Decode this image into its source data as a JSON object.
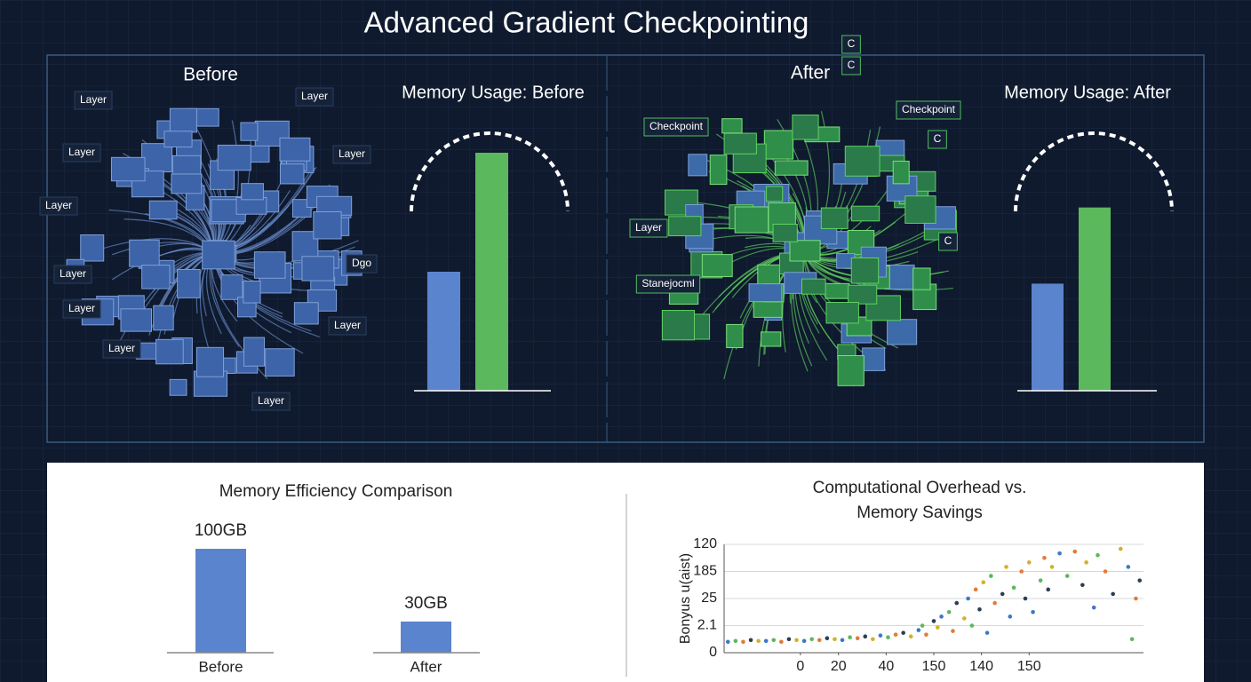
{
  "header": {
    "title": "Advanced Gradient Checkpointing"
  },
  "panels": {
    "before": "Before",
    "after": "After"
  },
  "network": {
    "before_labels": [
      "Layer",
      "Layer",
      "Layer",
      "Layer",
      "Layer",
      "Layer",
      "Layer",
      "Layer",
      "Layer",
      "Layer",
      "Dgo"
    ],
    "after_labels": [
      "Checkpoint",
      "Checkpoint",
      "Layer",
      "C",
      "C",
      "C",
      "C",
      "Stanejocml"
    ]
  },
  "chart_data": [
    {
      "type": "bar",
      "title": "Memory Usage: Before",
      "values": [
        50,
        100
      ],
      "colors": [
        "#5b84cf",
        "#5cb85c"
      ],
      "ylim": [
        0,
        100
      ]
    },
    {
      "type": "bar",
      "title": "Memory Usage: After",
      "values": [
        45,
        77
      ],
      "colors": [
        "#5b84cf",
        "#5cb85c"
      ],
      "ylim": [
        0,
        100
      ]
    },
    {
      "type": "bar",
      "title": "Memory Efficiency Comparison",
      "categories": [
        "Before",
        "After"
      ],
      "values": [
        100,
        30
      ],
      "value_labels": [
        "100GB",
        "30GB"
      ],
      "color": "#5b84cf",
      "ylim": [
        0,
        100
      ]
    },
    {
      "type": "scatter",
      "title": "Computational Overhead vs. Memory Savings",
      "y_label": "Bonyus u(aist)",
      "colors": [
        "#3c78c8",
        "#5cb85c",
        "#e07b39",
        "#2c3e50",
        "#d4b02a"
      ],
      "x": [
        2,
        6,
        10,
        14,
        18,
        22,
        26,
        30,
        34,
        38,
        42,
        46,
        50,
        54,
        58,
        62,
        66,
        70,
        74,
        78,
        82,
        86,
        90,
        94,
        98,
        102,
        104,
        106,
        110,
        112,
        114,
        118,
        120,
        122,
        126,
        128,
        130,
        132,
        134,
        136,
        138,
        140,
        142,
        146,
        148,
        150,
        152,
        156,
        158,
        160,
        162,
        166,
        168,
        170,
        172,
        176,
        180,
        184,
        188,
        190,
        194,
        196,
        200,
        204,
        208,
        212,
        214,
        216,
        218
      ],
      "values": [
        12,
        13,
        12,
        14,
        13,
        13,
        14,
        12,
        15,
        14,
        13,
        15,
        14,
        16,
        15,
        14,
        17,
        16,
        18,
        15,
        19,
        17,
        20,
        22,
        18,
        25,
        30,
        20,
        35,
        28,
        40,
        45,
        24,
        55,
        38,
        60,
        30,
        70,
        48,
        78,
        22,
        85,
        55,
        65,
        95,
        40,
        72,
        90,
        60,
        100,
        45,
        80,
        105,
        70,
        95,
        110,
        85,
        112,
        75,
        100,
        50,
        108,
        90,
        65,
        115,
        95,
        15,
        60,
        80
      ],
      "xlim": [
        0,
        220
      ],
      "ylim": [
        0,
        120
      ],
      "xticks": [
        {
          "value": 40,
          "label": "0"
        },
        {
          "value": 60,
          "label": "20"
        },
        {
          "value": 85,
          "label": "40"
        },
        {
          "value": 110,
          "label": "150"
        },
        {
          "value": 135,
          "label": "140"
        },
        {
          "value": 160,
          "label": "150"
        }
      ],
      "yticks": [
        0,
        {
          "value": 30,
          "label": "2.1"
        },
        {
          "value": 60,
          "label": "25"
        },
        {
          "value": 90,
          "label": "185"
        },
        120
      ],
      "grid": true
    }
  ]
}
